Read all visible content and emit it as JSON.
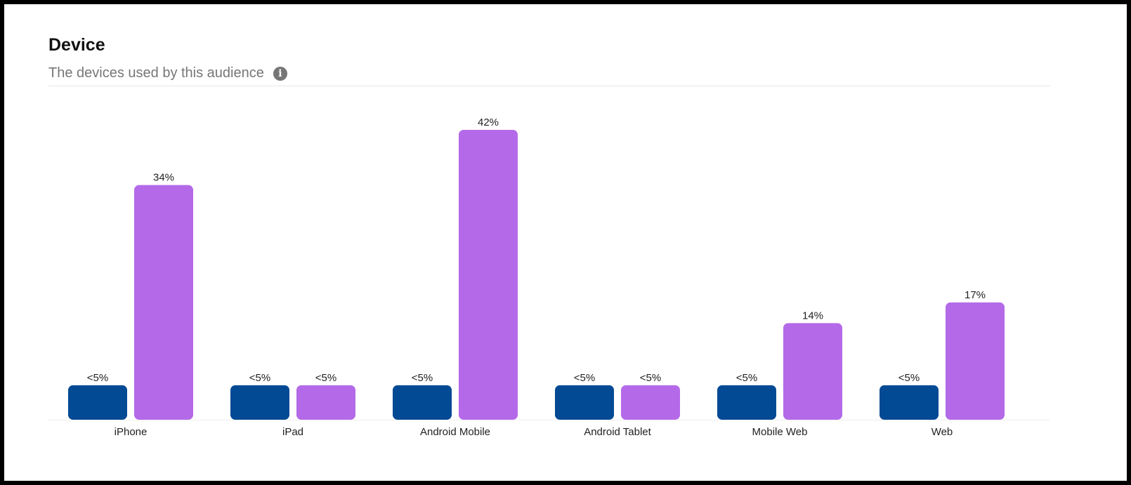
{
  "header": {
    "title": "Device",
    "subtitle": "The devices used by this audience",
    "info_icon": "info-icon"
  },
  "colors": {
    "series_a": "#034a94",
    "series_b": "#b46ae8",
    "baseline": "#eeeeee"
  },
  "chart_data": {
    "type": "bar",
    "categories": [
      "iPhone",
      "iPad",
      "Android Mobile",
      "Android Tablet",
      "Mobile Web",
      "Web"
    ],
    "series": [
      {
        "values": [
          5,
          5,
          5,
          5,
          5,
          5
        ],
        "labels": [
          "<5%",
          "<5%",
          "<5%",
          "<5%",
          "<5%",
          "<5%"
        ]
      },
      {
        "values": [
          34,
          5,
          42,
          5,
          14,
          17
        ],
        "labels": [
          "34%",
          "<5%",
          "42%",
          "<5%",
          "14%",
          "17%"
        ]
      }
    ],
    "ylim": [
      0,
      42
    ],
    "grid": false,
    "legend": "none"
  }
}
